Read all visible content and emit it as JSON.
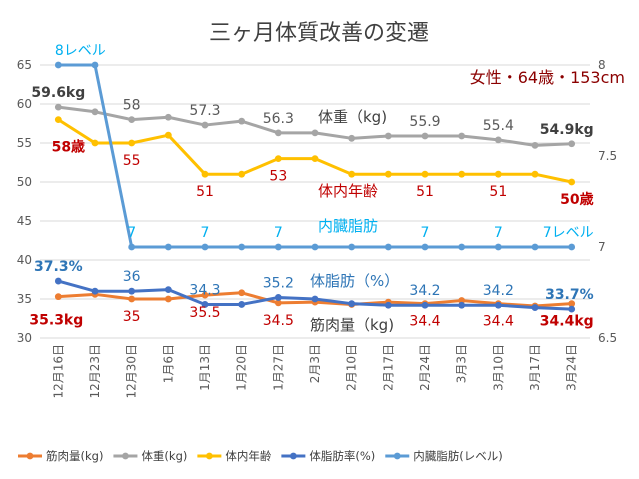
{
  "chart_data": {
    "type": "line",
    "title": "三ヶ月体質改善の変遷",
    "subtitle": "女性・64歳・153cm",
    "categories": [
      "12月16日",
      "12月23日",
      "12月30日",
      "1月6日",
      "1月13日",
      "1月20日",
      "1月27日",
      "2月3日",
      "2月10日",
      "2月17日",
      "2月24日",
      "3月3日",
      "3月10日",
      "3月17日",
      "3月24日"
    ],
    "left_axis": {
      "ylim": [
        30,
        65
      ],
      "ticks": [
        "30",
        "35",
        "40",
        "45",
        "50",
        "55",
        "60",
        "65"
      ]
    },
    "right_axis": {
      "ylim": [
        6.5,
        8
      ],
      "ticks": [
        "6.5",
        "7",
        "7.5",
        "8"
      ]
    },
    "grid": "horizontal",
    "legend_position": "bottom",
    "series": [
      {
        "name": "筋肉量(kg)",
        "axis": "left",
        "color": "#ED7D31",
        "inline_label": "筋肉量（kg)",
        "values": [
          35.3,
          35.6,
          35,
          35,
          35.5,
          35.8,
          34.5,
          34.6,
          34.3,
          34.6,
          34.4,
          34.8,
          34.4,
          34.1,
          34.4
        ],
        "data_labels": [
          {
            "i": 0,
            "text": "35.3kg",
            "color": "#C00000",
            "bold": true,
            "pos": "below-left"
          },
          {
            "i": 2,
            "text": "35",
            "color": "#C00000",
            "pos": "below"
          },
          {
            "i": 4,
            "text": "35.5",
            "color": "#C00000",
            "pos": "below"
          },
          {
            "i": 6,
            "text": "34.5",
            "color": "#C00000",
            "pos": "below"
          },
          {
            "i": 10,
            "text": "34.4",
            "color": "#C00000",
            "pos": "below"
          },
          {
            "i": 12,
            "text": "34.4",
            "color": "#C00000",
            "pos": "below"
          },
          {
            "i": 14,
            "text": "34.4kg",
            "color": "#C00000",
            "bold": true,
            "pos": "below"
          }
        ]
      },
      {
        "name": "体重(kg)",
        "axis": "left",
        "color": "#A5A5A5",
        "inline_label": "体重（kg)",
        "values": [
          59.6,
          59,
          58,
          58.3,
          57.3,
          57.8,
          56.3,
          56.3,
          55.6,
          55.9,
          55.9,
          55.9,
          55.4,
          54.7,
          54.9
        ],
        "data_labels": [
          {
            "i": 0,
            "text": "59.6kg",
            "color": "#404040",
            "bold": true,
            "pos": "above"
          },
          {
            "i": 2,
            "text": "58",
            "color": "#595959",
            "pos": "above"
          },
          {
            "i": 4,
            "text": "57.3",
            "color": "#595959",
            "pos": "above"
          },
          {
            "i": 6,
            "text": "56.3",
            "color": "#595959",
            "pos": "above"
          },
          {
            "i": 10,
            "text": "55.9",
            "color": "#595959",
            "pos": "above"
          },
          {
            "i": 12,
            "text": "55.4",
            "color": "#595959",
            "pos": "above"
          },
          {
            "i": 14,
            "text": "54.9kg",
            "color": "#404040",
            "bold": true,
            "pos": "above"
          }
        ]
      },
      {
        "name": "体内年齢",
        "axis": "left",
        "color": "#FFC000",
        "inline_label": "体内年齢",
        "values": [
          58,
          55,
          55,
          56,
          51,
          51,
          53,
          53,
          51,
          51,
          51,
          51,
          51,
          51,
          50
        ],
        "data_labels": [
          {
            "i": 0,
            "text": "58歳",
            "color": "#C00000",
            "bold": true,
            "pos": "below-right"
          },
          {
            "i": 2,
            "text": "55",
            "color": "#C00000",
            "pos": "below"
          },
          {
            "i": 4,
            "text": "51",
            "color": "#C00000",
            "pos": "below"
          },
          {
            "i": 6,
            "text": "53",
            "color": "#C00000",
            "pos": "below"
          },
          {
            "i": 10,
            "text": "51",
            "color": "#C00000",
            "pos": "below"
          },
          {
            "i": 12,
            "text": "51",
            "color": "#C00000",
            "pos": "below"
          },
          {
            "i": 14,
            "text": "50歳",
            "color": "#C00000",
            "bold": true,
            "pos": "below"
          }
        ]
      },
      {
        "name": "体脂肪率(%)",
        "axis": "left",
        "color": "#4472C4",
        "inline_label": "体脂肪（%）",
        "values": [
          37.3,
          36,
          36,
          36.2,
          34.3,
          34.3,
          35.2,
          35,
          34.4,
          34.2,
          34.2,
          34.2,
          34.2,
          33.9,
          33.7
        ],
        "data_labels": [
          {
            "i": 0,
            "text": "37.3%",
            "color": "#2E75B6",
            "bold": true,
            "pos": "above"
          },
          {
            "i": 2,
            "text": "36",
            "color": "#2E75B6",
            "pos": "above"
          },
          {
            "i": 4,
            "text": "34.3",
            "color": "#2E75B6",
            "pos": "above"
          },
          {
            "i": 6,
            "text": "35.2",
            "color": "#2E75B6",
            "pos": "above"
          },
          {
            "i": 10,
            "text": "34.2",
            "color": "#2E75B6",
            "pos": "above"
          },
          {
            "i": 12,
            "text": "34.2",
            "color": "#2E75B6",
            "pos": "above"
          },
          {
            "i": 14,
            "text": "33.7%",
            "color": "#2E75B6",
            "bold": true,
            "pos": "above"
          }
        ]
      },
      {
        "name": "内臓脂肪(レベル)",
        "axis": "right",
        "color": "#5B9BD5",
        "inline_label": "内臓脂肪",
        "values": [
          8,
          8,
          7,
          7,
          7,
          7,
          7,
          7,
          7,
          7,
          7,
          7,
          7,
          7,
          7
        ],
        "data_labels": [
          {
            "i": 0,
            "text": "8レベル",
            "color": "#00B0F0",
            "pos": "above-right"
          },
          {
            "i": 2,
            "text": "7",
            "color": "#00B0F0",
            "pos": "above"
          },
          {
            "i": 4,
            "text": "7",
            "color": "#00B0F0",
            "pos": "above"
          },
          {
            "i": 6,
            "text": "7",
            "color": "#00B0F0",
            "pos": "above"
          },
          {
            "i": 10,
            "text": "7",
            "color": "#00B0F0",
            "pos": "above"
          },
          {
            "i": 12,
            "text": "7",
            "color": "#00B0F0",
            "pos": "above"
          },
          {
            "i": 14,
            "text": "7レベル",
            "color": "#00B0F0",
            "pos": "above"
          }
        ]
      }
    ]
  }
}
